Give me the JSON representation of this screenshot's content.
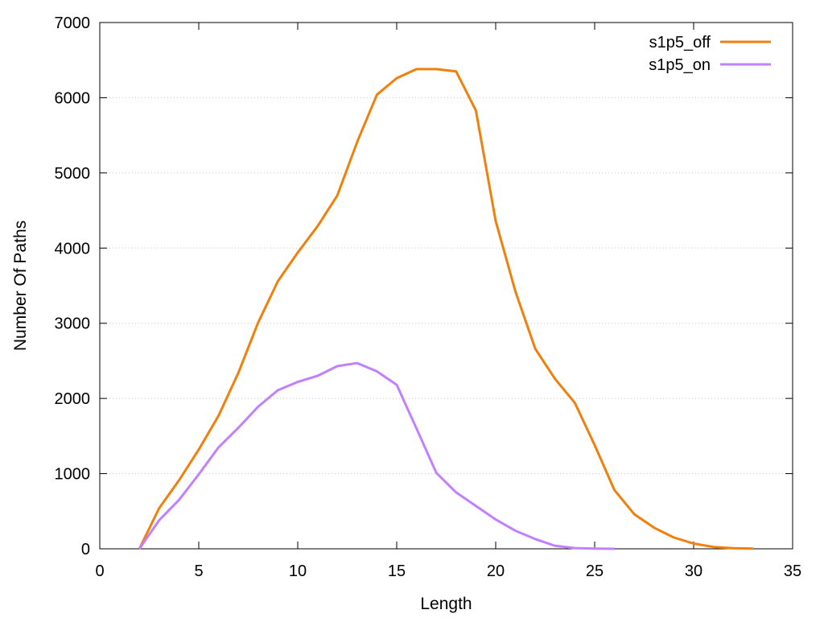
{
  "chart_data": {
    "type": "line",
    "title": "",
    "xlabel": "Length",
    "ylabel": "Number Of Paths",
    "xlim": [
      0,
      35
    ],
    "ylim": [
      0,
      7000
    ],
    "xticks": [
      0,
      5,
      10,
      15,
      20,
      25,
      30,
      35
    ],
    "yticks": [
      0,
      1000,
      2000,
      3000,
      4000,
      5000,
      6000,
      7000
    ],
    "grid": true,
    "legend_position": "top-right",
    "series": [
      {
        "name": "s1p5_off",
        "color": "#f07f0c",
        "x": [
          2,
          3,
          4,
          5,
          6,
          7,
          8,
          9,
          10,
          11,
          12,
          13,
          14,
          15,
          16,
          17,
          18,
          19,
          20,
          21,
          22,
          23,
          24,
          25,
          26,
          27,
          28,
          29,
          30,
          31,
          32,
          33
        ],
        "y": [
          0,
          540,
          910,
          1320,
          1770,
          2340,
          3010,
          3560,
          3940,
          4290,
          4700,
          5410,
          6040,
          6260,
          6380,
          6380,
          6350,
          5830,
          4360,
          3420,
          2660,
          2260,
          1940,
          1380,
          780,
          460,
          280,
          150,
          70,
          25,
          8,
          2
        ]
      },
      {
        "name": "s1p5_on",
        "color": "#c080ff",
        "x": [
          2,
          3,
          4,
          5,
          6,
          7,
          8,
          9,
          10,
          11,
          12,
          13,
          14,
          15,
          16,
          17,
          18,
          19,
          20,
          21,
          22,
          23,
          24,
          25,
          26
        ],
        "y": [
          0,
          380,
          650,
          990,
          1350,
          1610,
          1890,
          2110,
          2220,
          2300,
          2430,
          2470,
          2360,
          2180,
          1600,
          1010,
          750,
          570,
          390,
          240,
          130,
          40,
          10,
          2,
          0
        ]
      }
    ]
  }
}
